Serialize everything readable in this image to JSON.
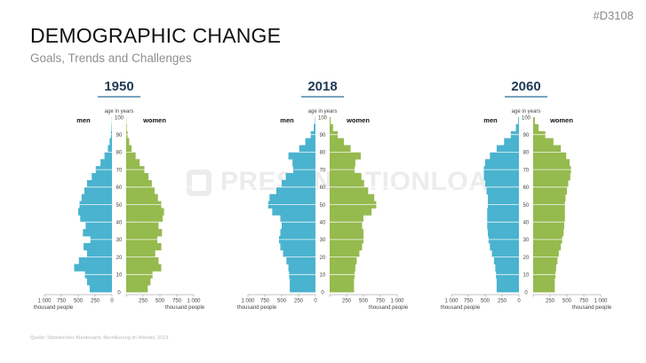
{
  "header": {
    "title": "DEMOGRAPHIC CHANGE",
    "subtitle": "Goals, Trends and Challenges",
    "code": "#D3108"
  },
  "watermark": "PRESENTATIONLOAD",
  "source": "Quelle: Statistisches Bundesamt, Bevölkerung im Wandel, 2019",
  "colors": {
    "men": "#4ab3cf",
    "women": "#95ba4e",
    "title": "#1f3a55",
    "underline": "#4b86a8"
  },
  "chart_data": [
    {
      "type": "population-pyramid",
      "title": "1950",
      "left_label": "men",
      "right_label": "women",
      "age_axis_label": "age in years",
      "age_ticks": [
        0,
        10,
        20,
        30,
        40,
        50,
        60,
        70,
        80,
        90,
        100
      ],
      "x_ticks": [
        "1 000",
        "750",
        "500",
        "250",
        "0",
        "250",
        "500",
        "750",
        "1 000"
      ],
      "x_unit_label": "thousand people",
      "xlim": [
        -1000,
        1000
      ],
      "ylim": [
        0,
        100
      ],
      "ages": [
        0,
        4,
        8,
        12,
        16,
        20,
        24,
        28,
        32,
        36,
        40,
        44,
        48,
        52,
        56,
        60,
        64,
        68,
        72,
        76,
        80,
        84,
        88,
        92,
        96,
        100
      ],
      "men": [
        330,
        370,
        400,
        560,
        490,
        370,
        420,
        320,
        430,
        390,
        470,
        500,
        480,
        450,
        410,
        370,
        300,
        240,
        170,
        110,
        60,
        35,
        15,
        6,
        2,
        0
      ],
      "women": [
        320,
        360,
        390,
        520,
        480,
        430,
        520,
        460,
        530,
        480,
        540,
        560,
        520,
        470,
        420,
        380,
        330,
        270,
        200,
        140,
        80,
        45,
        20,
        8,
        3,
        0
      ]
    },
    {
      "type": "population-pyramid",
      "title": "2018",
      "left_label": "men",
      "right_label": "women",
      "age_axis_label": "age in years",
      "age_ticks": [
        0,
        10,
        20,
        30,
        40,
        50,
        60,
        70,
        80,
        90,
        100
      ],
      "x_ticks": [
        "1 000",
        "750",
        "500",
        "250",
        "0",
        "250",
        "500",
        "750",
        "1 000"
      ],
      "x_unit_label": "thousand people",
      "xlim": [
        -1000,
        1000
      ],
      "ylim": [
        0,
        100
      ],
      "ages": [
        0,
        4,
        8,
        12,
        16,
        20,
        24,
        28,
        32,
        36,
        40,
        44,
        48,
        52,
        56,
        60,
        64,
        68,
        72,
        76,
        80,
        84,
        88,
        92,
        96,
        100
      ],
      "men": [
        380,
        380,
        390,
        400,
        430,
        480,
        520,
        540,
        520,
        500,
        520,
        640,
        700,
        680,
        580,
        500,
        440,
        330,
        340,
        400,
        240,
        150,
        70,
        25,
        6,
        0
      ],
      "women": [
        360,
        360,
        370,
        380,
        400,
        440,
        480,
        500,
        500,
        480,
        500,
        620,
        690,
        660,
        570,
        510,
        470,
        370,
        380,
        460,
        310,
        210,
        120,
        50,
        15,
        0
      ]
    },
    {
      "type": "population-pyramid",
      "title": "2060",
      "left_label": "men",
      "right_label": "women",
      "age_axis_label": "age in years",
      "age_ticks": [
        0,
        10,
        20,
        30,
        40,
        50,
        60,
        70,
        80,
        90,
        100
      ],
      "x_ticks": [
        "1 000",
        "750",
        "500",
        "250",
        "0",
        "250",
        "500",
        "750",
        "1 000"
      ],
      "x_unit_label": "thousand people",
      "xlim": [
        -1000,
        1000
      ],
      "ylim": [
        0,
        100
      ],
      "ages": [
        0,
        4,
        8,
        12,
        16,
        20,
        24,
        28,
        32,
        36,
        40,
        44,
        48,
        52,
        56,
        60,
        64,
        68,
        72,
        76,
        80,
        84,
        88,
        92,
        96,
        100
      ],
      "men": [
        330,
        330,
        340,
        350,
        370,
        400,
        430,
        450,
        460,
        470,
        470,
        470,
        460,
        460,
        480,
        500,
        520,
        520,
        500,
        430,
        330,
        220,
        120,
        45,
        12,
        0
      ],
      "women": [
        320,
        320,
        330,
        340,
        360,
        380,
        410,
        430,
        450,
        460,
        470,
        470,
        470,
        480,
        500,
        520,
        550,
        560,
        540,
        490,
        410,
        300,
        180,
        80,
        25,
        0
      ]
    }
  ]
}
